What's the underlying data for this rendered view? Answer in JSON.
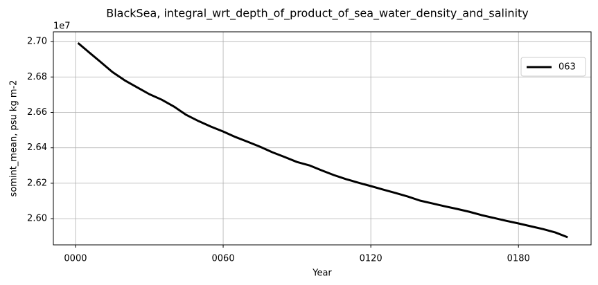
{
  "chart_data": {
    "type": "line",
    "title": "BlackSea, integral_wrt_depth_of_product_of_sea_water_density_and_salinity",
    "x_label": "Year",
    "y_label": "somint_mean, psu kg m-2",
    "y_offset_label": "1e7",
    "x": [
      1,
      5,
      10,
      15,
      20,
      25,
      30,
      35,
      40,
      45,
      50,
      55,
      60,
      65,
      70,
      75,
      80,
      85,
      90,
      95,
      100,
      105,
      110,
      115,
      120,
      125,
      130,
      135,
      140,
      145,
      150,
      155,
      160,
      165,
      170,
      175,
      180,
      185,
      190,
      195,
      200
    ],
    "series": [
      {
        "name": "063",
        "color": "#000000",
        "values": [
          2.6992,
          2.6945,
          2.6887,
          2.6828,
          2.6781,
          2.6742,
          2.6703,
          2.6672,
          2.6633,
          2.6586,
          2.6551,
          2.652,
          2.6492,
          2.6461,
          2.6434,
          2.6406,
          2.6375,
          2.6348,
          2.632,
          2.6301,
          2.6273,
          2.6246,
          2.6223,
          2.6203,
          2.6184,
          2.6164,
          2.6145,
          2.6125,
          2.6102,
          2.6086,
          2.607,
          2.6055,
          2.6039,
          2.602,
          2.6004,
          2.5988,
          2.5973,
          2.5957,
          2.5941,
          2.5922,
          2.5895
        ]
      }
    ],
    "xlim": [
      -9,
      209.5
    ],
    "xticks": [
      {
        "value": 0,
        "label": "0000"
      },
      {
        "value": 60,
        "label": "0060"
      },
      {
        "value": 120,
        "label": "0120"
      },
      {
        "value": 180,
        "label": "0180"
      }
    ],
    "ylim": [
      2.5852,
      2.7055
    ],
    "yticks": [
      {
        "value": 2.6,
        "label": "2.60"
      },
      {
        "value": 2.62,
        "label": "2.62"
      },
      {
        "value": 2.64,
        "label": "2.64"
      },
      {
        "value": 2.66,
        "label": "2.66"
      },
      {
        "value": 2.68,
        "label": "2.68"
      },
      {
        "value": 2.7,
        "label": "2.70"
      }
    ],
    "grid": true,
    "legend": "upper right"
  }
}
